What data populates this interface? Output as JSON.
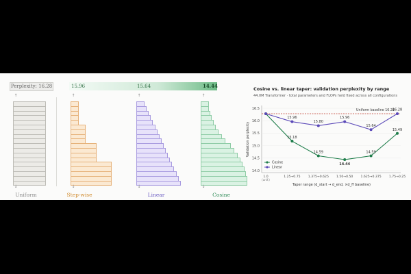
{
  "left_panel": {
    "perplexity_label": "Perplexity: 16.28",
    "gradient_values": [
      "15.96",
      "15.64",
      "14.44"
    ],
    "columns": [
      {
        "label": "Uniform",
        "color": "#888888",
        "fill": "#ecebe7",
        "stroke": "#bdbcb6"
      },
      {
        "label": "Step-wise",
        "color": "#d08a2c",
        "fill": "#fbe9d2",
        "stroke": "#e6b27a"
      },
      {
        "label": "Linear",
        "color": "#6a5bc2",
        "fill": "#e7e2fa",
        "stroke": "#a99ce0"
      },
      {
        "label": "Cosine",
        "color": "#2e8b57",
        "fill": "#daf2e3",
        "stroke": "#8fcca6"
      }
    ]
  },
  "chart_data": {
    "type": "line",
    "title": "Cosine vs. linear taper: validation perplexity by range",
    "subtitle": "44.0M Transformer · total parameters and FLOPs held fixed across all configurations",
    "xlabel": "Taper range (d_start → d_end, ×d_ff baseline)",
    "ylabel": "Validation perplexity",
    "categories": [
      "1.0\n(unif.)",
      "1.25→0.75",
      "1.375→0.625",
      "1.50→0.50",
      "1.625→0.375",
      "1.75→0.25"
    ],
    "ylim": [
      14.0,
      16.5
    ],
    "yticks": [
      14.0,
      14.5,
      15.0,
      15.5,
      16.0,
      16.5
    ],
    "baseline": {
      "value": 16.28,
      "label": "Uniform baseline 16.28",
      "color": "#c0392b"
    },
    "series": [
      {
        "name": "Cosine",
        "color": "#1e7d4a",
        "values": [
          16.28,
          15.18,
          14.59,
          14.44,
          14.59,
          15.49
        ],
        "labels": [
          "",
          "15.18",
          "14.59",
          "14.44",
          "14.59",
          "15.49"
        ]
      },
      {
        "name": "Linear",
        "color": "#5a48b8",
        "values": [
          16.28,
          15.96,
          15.8,
          15.96,
          15.64,
          16.28
        ],
        "labels": [
          "",
          "15.96",
          "15.80",
          "15.96",
          "15.64",
          "16.28"
        ]
      }
    ],
    "legend_position": "bottom-left",
    "grid": true
  }
}
